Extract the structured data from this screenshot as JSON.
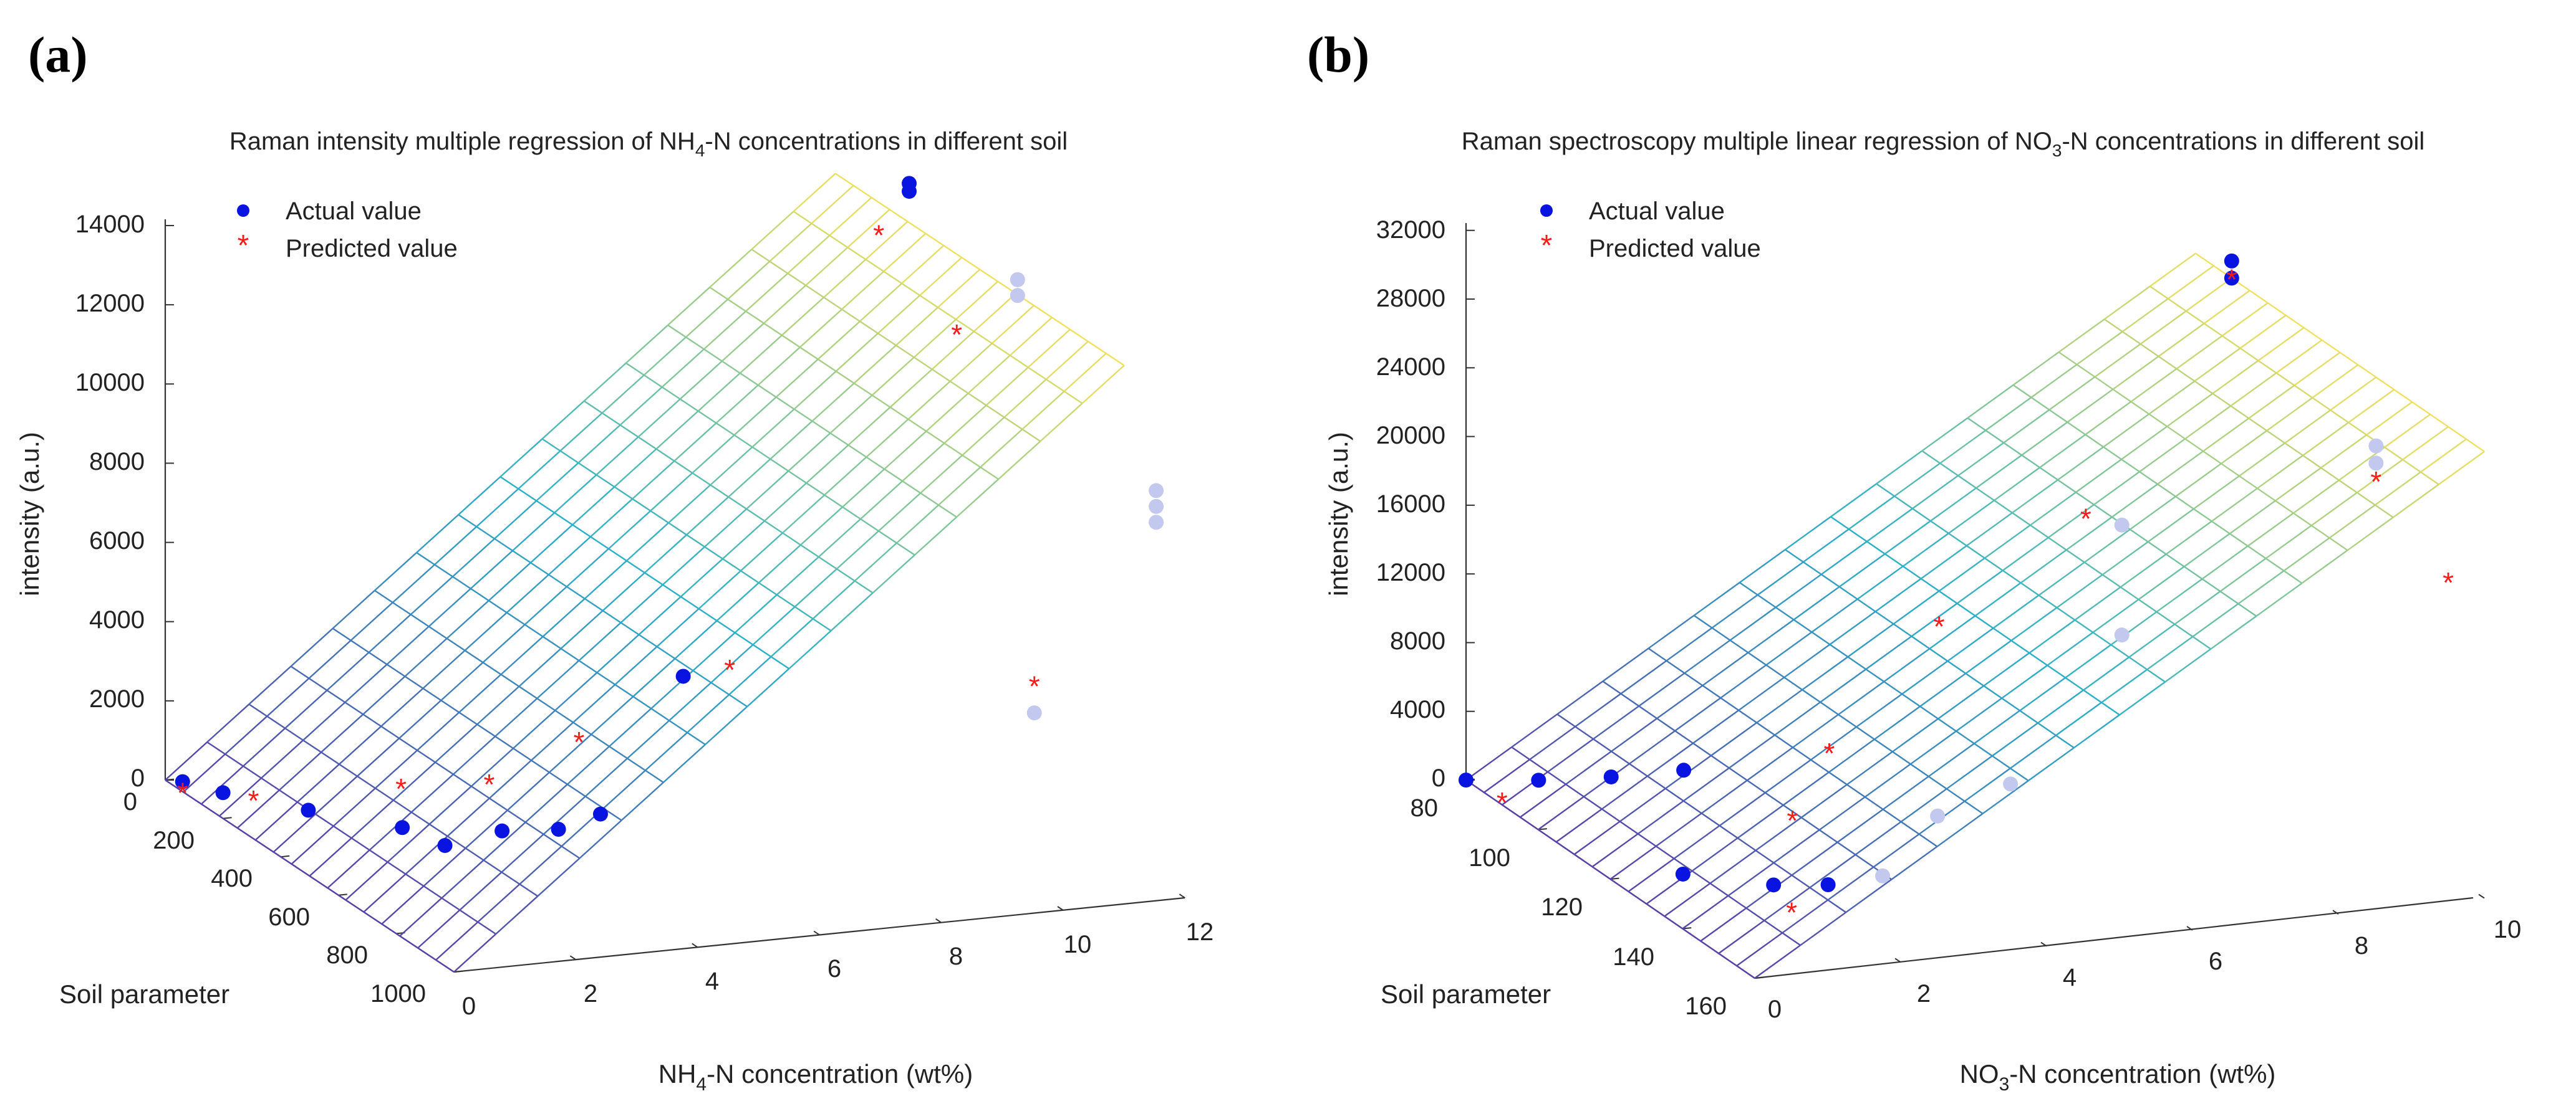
{
  "panels": [
    {
      "letter": "(a)",
      "title_prefix": "Raman intensity multiple regression of NH",
      "title_sub": "4",
      "title_suffix": "-N concentrations in different soil",
      "legend": {
        "actual": "Actual value",
        "predicted": "Predicted value"
      },
      "ylabel": "intensity (a.u.)",
      "soil_label": "Soil parameter",
      "xlabel_prefix": "NH",
      "xlabel_sub": "4",
      "xlabel_suffix": "-N concentration (wt%)",
      "z_ticks": [
        "0",
        "2000",
        "4000",
        "6000",
        "8000",
        "10000",
        "12000",
        "14000"
      ],
      "soil_ticks": [
        "0",
        "200",
        "400",
        "600",
        "800",
        "1000"
      ],
      "conc_ticks": [
        "0",
        "2",
        "4",
        "6",
        "8",
        "10",
        "12"
      ]
    },
    {
      "letter": "(b)",
      "title_prefix": "Raman spectroscopy multiple linear regression of NO",
      "title_sub": "3",
      "title_suffix": "-N concentrations in different soil",
      "legend": {
        "actual": "Actual value",
        "predicted": "Predicted value"
      },
      "ylabel": "intensity (a.u.)",
      "soil_label": "Soil parameter",
      "xlabel_prefix": "NO",
      "xlabel_sub": "3",
      "xlabel_suffix": "-N concentration (wt%)",
      "z_ticks": [
        "0",
        "4000",
        "8000",
        "12000",
        "16000",
        "20000",
        "24000",
        "28000",
        "32000"
      ],
      "soil_ticks": [
        "80",
        "100",
        "120",
        "140",
        "160"
      ],
      "conc_ticks": [
        "0",
        "2",
        "4",
        "6",
        "8",
        "10"
      ]
    }
  ],
  "colors": {
    "actual": "#0a14e0",
    "predicted": "#ff1a1a",
    "hidden_point": "#c3c8ef",
    "mesh_low": "#5b3fa8",
    "mesh_mid": "#2bb0c8",
    "mesh_high": "#f0e060"
  },
  "chart_data": [
    {
      "type": "scatter3d",
      "title": "Raman intensity multiple regression of NH4-N concentrations in different soil",
      "xlabel": "NH4-N concentration (wt%)",
      "ylabel": "Soil parameter",
      "zlabel": "intensity (a.u.)",
      "xlim": [
        0,
        12
      ],
      "ylim": [
        0,
        1000
      ],
      "zlim": [
        0,
        14000
      ],
      "surface": {
        "type": "fitted regression plane",
        "z_at_x0": 0,
        "z_at_x11": 13600
      },
      "series": [
        {
          "name": "Actual value",
          "points": [
            {
              "x": 0,
              "y": 60,
              "z": 250
            },
            {
              "x": 0,
              "y": 200,
              "z": 650
            },
            {
              "x": 0.5,
              "y": 390,
              "z": 1050
            },
            {
              "x": 1,
              "y": 610,
              "z": 1600
            },
            {
              "x": 0.8,
              "y": 800,
              "z": 2100
            },
            {
              "x": 1.5,
              "y": 850,
              "z": 2600
            },
            {
              "x": 2,
              "y": 940,
              "z": 3000
            },
            {
              "x": 2.5,
              "y": 980,
              "z": 3500
            },
            {
              "x": 4,
              "y": 950,
              "z": 6600
            },
            {
              "x": 11.5,
              "y": 150,
              "z": 13800
            },
            {
              "x": 11.5,
              "y": 150,
              "z": 14000
            },
            {
              "x": 12,
              "y": 420,
              "z": 12400
            },
            {
              "x": 12,
              "y": 420,
              "z": 12800
            },
            {
              "x": 12,
              "y": 900,
              "z": 9000
            },
            {
              "x": 12,
              "y": 900,
              "z": 9400
            },
            {
              "x": 12,
              "y": 900,
              "z": 9800
            },
            {
              "x": 10,
              "y": 900,
              "z": 4500
            }
          ]
        },
        {
          "name": "Predicted value",
          "points": [
            {
              "x": 0,
              "y": 60,
              "z": 0
            },
            {
              "x": 0.5,
              "y": 200,
              "z": 400
            },
            {
              "x": 1.5,
              "y": 500,
              "z": 2000
            },
            {
              "x": 2,
              "y": 700,
              "z": 3000
            },
            {
              "x": 3,
              "y": 800,
              "z": 4400
            },
            {
              "x": 5,
              "y": 900,
              "z": 6400
            },
            {
              "x": 11,
              "y": 150,
              "z": 12800
            },
            {
              "x": 11,
              "y": 420,
              "z": 11600
            },
            {
              "x": 10,
              "y": 900,
              "z": 5200
            }
          ]
        }
      ]
    },
    {
      "type": "scatter3d",
      "title": "Raman spectroscopy multiple linear regression of NO3-N concentrations in different soil",
      "xlabel": "NO3-N concentration (wt%)",
      "ylabel": "Soil parameter",
      "zlabel": "intensity (a.u.)",
      "xlim": [
        0,
        10
      ],
      "ylim": [
        80,
        160
      ],
      "zlim": [
        0,
        32000
      ],
      "surface": {
        "type": "fitted regression plane",
        "z_at_x0": 0,
        "z_at_x10": 26000
      },
      "series": [
        {
          "name": "Actual value",
          "points": [
            {
              "x": 0,
              "y": 80,
              "z": 0
            },
            {
              "x": 0.5,
              "y": 90,
              "z": 1200
            },
            {
              "x": 1,
              "y": 100,
              "z": 2600
            },
            {
              "x": 1.5,
              "y": 110,
              "z": 4200
            },
            {
              "x": 0.5,
              "y": 130,
              "z": 1500
            },
            {
              "x": 1,
              "y": 145,
              "z": 2800
            },
            {
              "x": 1.5,
              "y": 150,
              "z": 3300
            },
            {
              "x": 2,
              "y": 155,
              "z": 4300
            },
            {
              "x": 3,
              "y": 150,
              "z": 6600
            },
            {
              "x": 4,
              "y": 150,
              "z": 8000
            },
            {
              "x": 8,
              "y": 100,
              "z": 14000
            },
            {
              "x": 8,
              "y": 100,
              "z": 7600
            },
            {
              "x": 10,
              "y": 90,
              "z": 26000
            },
            {
              "x": 10,
              "y": 90,
              "z": 27000
            },
            {
              "x": 10,
              "y": 130,
              "z": 21000
            },
            {
              "x": 10,
              "y": 130,
              "z": 22000
            }
          ]
        },
        {
          "name": "Predicted value",
          "points": [
            {
              "x": 0,
              "y": 90,
              "z": 200
            },
            {
              "x": 1,
              "y": 150,
              "z": 2000
            },
            {
              "x": 2,
              "y": 130,
              "z": 4000
            },
            {
              "x": 3,
              "y": 120,
              "z": 6000
            },
            {
              "x": 5,
              "y": 110,
              "z": 11000
            },
            {
              "x": 8,
              "y": 90,
              "z": 13000
            },
            {
              "x": 10,
              "y": 90,
              "z": 26000
            },
            {
              "x": 10,
              "y": 130,
              "z": 20000
            },
            {
              "x": 10,
              "y": 150,
              "z": 17000
            }
          ]
        }
      ]
    }
  ]
}
